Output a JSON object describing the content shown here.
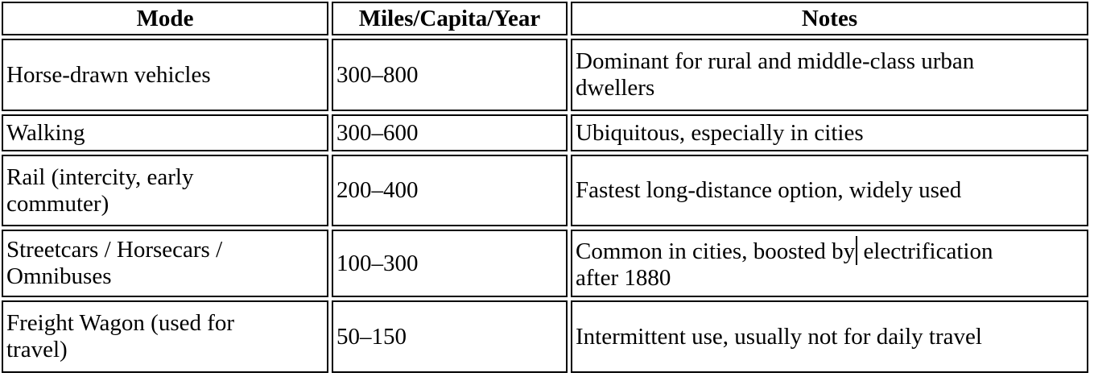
{
  "table": {
    "columns": [
      {
        "label": "Mode"
      },
      {
        "label": "Miles/Capita/Year"
      },
      {
        "label": "Notes"
      }
    ],
    "rows": [
      {
        "mode_lines": [
          "Horse-drawn vehicles"
        ],
        "miles": "300–800",
        "notes_lines": [
          "Dominant for rural and middle-class urban",
          "dwellers"
        ]
      },
      {
        "mode_lines": [
          "Walking"
        ],
        "miles": "300–600",
        "notes_lines": [
          "Ubiquitous, especially in cities"
        ]
      },
      {
        "mode_lines": [
          "Rail (intercity, early",
          "commuter)"
        ],
        "miles": "200–400",
        "notes_lines": [
          "Fastest long-distance option, widely used"
        ]
      },
      {
        "mode_lines": [
          "Streetcars / Horsecars /",
          "Omnibuses"
        ],
        "miles": "100–300",
        "notes_lines": [
          "Common in cities, boosted by electrification",
          "after 1880"
        ],
        "caret": {
          "line_index": 0,
          "after_text": "Common in cities, boosted by"
        }
      },
      {
        "mode_lines": [
          "Freight Wagon (used for",
          "travel)"
        ],
        "miles": "50–150",
        "notes_lines": [
          "Intermittent use, usually not for daily travel"
        ]
      }
    ]
  },
  "colors": {
    "background": "#ffffff",
    "text": "#000000",
    "border": "#000000"
  }
}
